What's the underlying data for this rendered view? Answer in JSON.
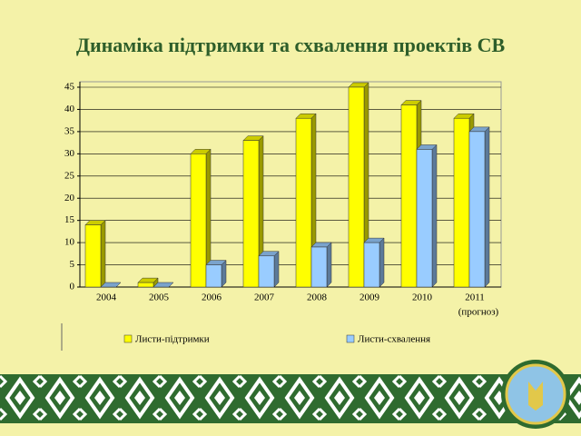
{
  "chart_data": {
    "type": "bar",
    "title": "Динаміка підтримки та схвалення проектів СВ",
    "categories": [
      "2004",
      "2005",
      "2006",
      "2007",
      "2008",
      "2009",
      "2010",
      "2011"
    ],
    "annotation": "(прогноз)",
    "series": [
      {
        "name": "Листи-підтримки",
        "color": "#ffff00",
        "values": [
          14,
          1,
          30,
          33,
          38,
          45,
          41,
          38
        ]
      },
      {
        "name": "Листи-схвалення",
        "color": "#99ccff",
        "values": [
          0,
          0,
          5,
          7,
          9,
          10,
          31,
          35
        ]
      }
    ],
    "ylim": [
      0,
      45
    ],
    "yticks": [
      0,
      5,
      10,
      15,
      20,
      25,
      30,
      35,
      40,
      45
    ],
    "grid": true
  }
}
